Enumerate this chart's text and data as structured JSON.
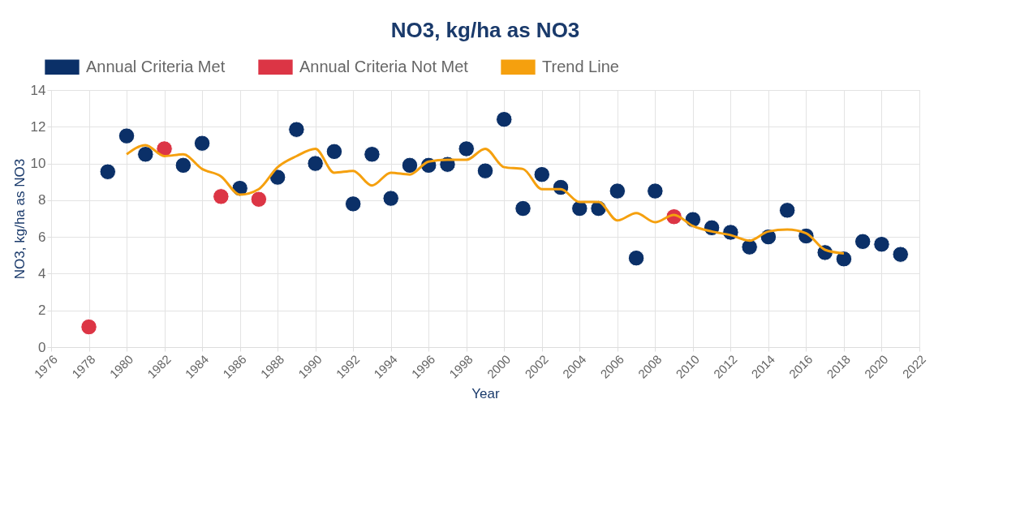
{
  "chart_data": {
    "type": "scatter",
    "title": "NO3, kg/ha as NO3",
    "xlabel": "Year",
    "ylabel": "NO3, kg/ha as NO3",
    "x": [
      1978,
      1979,
      1980,
      1981,
      1982,
      1983,
      1984,
      1985,
      1986,
      1987,
      1988,
      1989,
      1990,
      1991,
      1992,
      1993,
      1994,
      1995,
      1996,
      1997,
      1998,
      1999,
      2000,
      2001,
      2002,
      2003,
      2004,
      2005,
      2006,
      2007,
      2008,
      2009,
      2010,
      2011,
      2012,
      2013,
      2014,
      2015,
      2016,
      2017,
      2018,
      2019,
      2020,
      2021
    ],
    "series": [
      {
        "name": "Annual Criteria Met",
        "color": "#0b3068",
        "values": [
          null,
          9.55,
          11.5,
          10.5,
          null,
          9.9,
          11.1,
          null,
          8.65,
          null,
          9.25,
          11.85,
          10.0,
          10.65,
          7.8,
          10.5,
          8.1,
          9.9,
          9.9,
          9.95,
          10.8,
          9.6,
          12.4,
          7.55,
          9.4,
          8.7,
          7.55,
          7.55,
          8.5,
          4.85,
          8.5,
          null,
          6.95,
          6.5,
          6.25,
          5.45,
          6.0,
          7.45,
          6.05,
          5.15,
          4.8,
          5.75,
          5.6,
          5.05
        ]
      },
      {
        "name": "Annual Criteria Not Met",
        "color": "#dc3545",
        "values": [
          1.1,
          null,
          null,
          null,
          10.8,
          null,
          null,
          8.2,
          null,
          8.05,
          null,
          null,
          null,
          null,
          null,
          null,
          null,
          null,
          null,
          null,
          null,
          null,
          null,
          null,
          null,
          null,
          null,
          null,
          null,
          null,
          null,
          7.1,
          null,
          null,
          null,
          null,
          null,
          null,
          null,
          null,
          null,
          null,
          null,
          null
        ]
      },
      {
        "name": "Trend Line",
        "color": "#f5a00e",
        "type": "line",
        "marker": "none",
        "x": [
          1980,
          1981,
          1982,
          1983,
          1984,
          1985,
          1986,
          1987,
          1988,
          1989,
          1990,
          1991,
          1992,
          1993,
          1994,
          1995,
          1996,
          1997,
          1998,
          1999,
          2000,
          2001,
          2002,
          2003,
          2004,
          2005,
          2006,
          2007,
          2008,
          2009,
          2010,
          2011,
          2012,
          2013,
          2014,
          2015,
          2016,
          2017,
          2018
        ],
        "values": [
          10.5,
          11.0,
          10.4,
          10.5,
          9.7,
          9.3,
          8.3,
          8.6,
          9.8,
          10.4,
          10.8,
          9.5,
          9.6,
          8.8,
          9.5,
          9.4,
          10.1,
          10.2,
          10.2,
          10.8,
          9.8,
          9.7,
          8.6,
          8.6,
          7.9,
          7.9,
          6.9,
          7.3,
          6.8,
          7.2,
          6.6,
          6.3,
          6.1,
          5.8,
          6.3,
          6.4,
          6.2,
          5.3,
          5.1
        ]
      }
    ],
    "xlim": [
      1976,
      2022
    ],
    "xticks": [
      1976,
      1978,
      1980,
      1982,
      1984,
      1986,
      1988,
      1990,
      1992,
      1994,
      1996,
      1998,
      2000,
      2002,
      2004,
      2006,
      2008,
      2010,
      2012,
      2014,
      2016,
      2018,
      2020,
      2022
    ],
    "ylim": [
      0,
      14
    ],
    "yticks": [
      0,
      2,
      4,
      6,
      8,
      10,
      12,
      14
    ],
    "grid": true,
    "legend": "top",
    "marker": "circle",
    "line_style": "solid"
  }
}
